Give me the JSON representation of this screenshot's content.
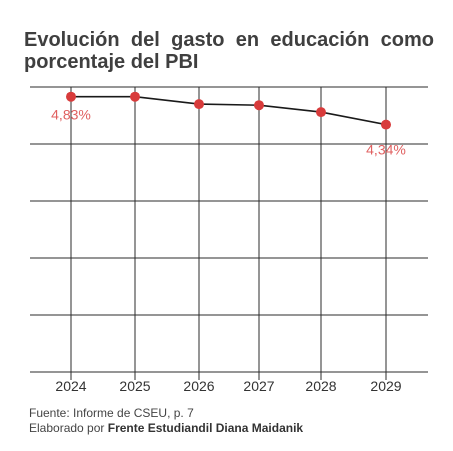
{
  "title": "Evolución del gasto en educación como porcentaje del PBI",
  "footer": {
    "source": "Fuente: Informe de CSEU, p. 7",
    "credit_prefix": "Elaborado por",
    "credit_name": "Frente Estudiandil Diana Maidanik"
  },
  "colors": {
    "line": "#1a1a1a",
    "point": "#d83b3b",
    "label": "#e06060",
    "grid": "#2b2b2b",
    "tick_text": "#333333"
  },
  "chart_data": {
    "type": "line",
    "categories": [
      "2024",
      "2025",
      "2026",
      "2027",
      "2028",
      "2029"
    ],
    "values": [
      4.83,
      4.83,
      4.7,
      4.68,
      4.56,
      4.34
    ],
    "data_labels": [
      {
        "index": 0,
        "text": "4,83%"
      },
      {
        "index": 5,
        "text": "4,34%"
      }
    ],
    "ylim": [
      0,
      5
    ],
    "y_gridlines": [
      0,
      1,
      2,
      3,
      4,
      5
    ],
    "xlabel": "",
    "ylabel": "",
    "grid": true,
    "legend": "none"
  }
}
